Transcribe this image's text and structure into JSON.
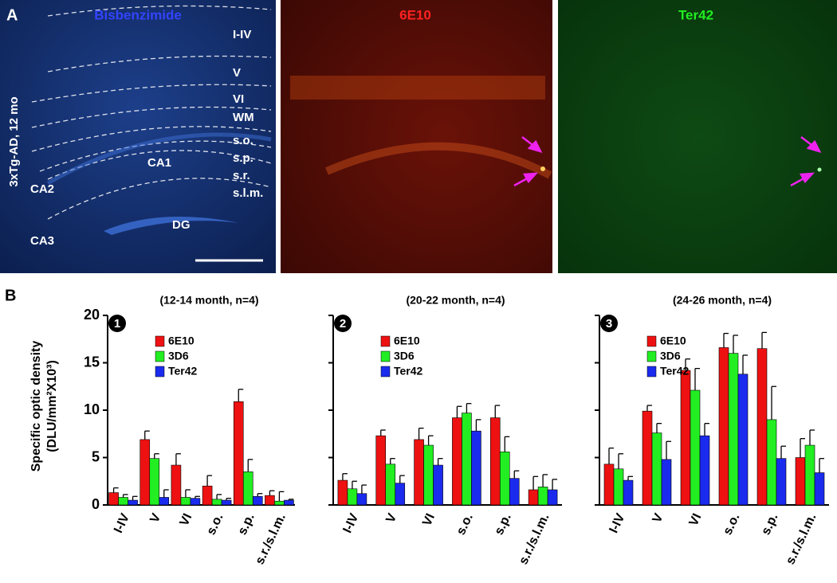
{
  "panel_a": {
    "label": "A",
    "images": [
      {
        "title": "Bisbenzimide"
      },
      {
        "title": "6E10"
      },
      {
        "title": "Ter42"
      }
    ],
    "layers": [
      "I-IV",
      "V",
      "VI",
      "WM",
      "s.o.",
      "s.p.",
      "s.r.",
      "s.l.m."
    ],
    "regions": [
      "CA1",
      "CA2",
      "CA3",
      "DG"
    ],
    "side_label": "3xTg-AD, 12 mo"
  },
  "panel_b": {
    "label": "B",
    "ylabel": [
      "Specific optic density",
      "(DLU/mm²X10³)"
    ]
  },
  "chart_data": [
    {
      "type": "bar",
      "number": "1",
      "title": "(12-14 month, n=4)",
      "categories": [
        "I-IV",
        "V",
        "VI",
        "s.o.",
        "s.p.",
        "s.r./s.l.m."
      ],
      "ylim": [
        0,
        20
      ],
      "yticks": [
        0,
        5,
        10,
        15,
        20
      ],
      "series": [
        {
          "name": "6E10",
          "color": "#ee1111",
          "values": [
            1.3,
            6.9,
            4.2,
            2.0,
            10.9,
            1.0
          ],
          "errors": [
            0.5,
            0.9,
            1.2,
            1.1,
            1.3,
            0.5
          ]
        },
        {
          "name": "3D6",
          "color": "#22ee22",
          "values": [
            0.8,
            4.9,
            0.8,
            0.6,
            3.5,
            0.4
          ],
          "errors": [
            0.3,
            0.5,
            0.8,
            0.5,
            1.3,
            1.0
          ]
        },
        {
          "name": "Ter42",
          "color": "#1a2bee",
          "values": [
            0.5,
            0.8,
            0.7,
            0.5,
            0.9,
            0.5
          ],
          "errors": [
            0.4,
            0.8,
            0.2,
            0.2,
            0.3,
            0.1
          ]
        }
      ]
    },
    {
      "type": "bar",
      "number": "2",
      "title": "(20-22 month, n=4)",
      "categories": [
        "I-IV",
        "V",
        "VI",
        "s.o.",
        "s.p.",
        "s.r./s.l.m."
      ],
      "ylim": [
        0,
        20
      ],
      "series": [
        {
          "name": "6E10",
          "color": "#ee1111",
          "values": [
            2.6,
            7.3,
            6.9,
            9.2,
            9.2,
            1.6
          ],
          "errors": [
            0.7,
            0.6,
            1.2,
            1.2,
            1.3,
            1.4
          ]
        },
        {
          "name": "3D6",
          "color": "#22ee22",
          "values": [
            1.7,
            4.3,
            6.3,
            9.7,
            5.6,
            1.9
          ],
          "errors": [
            0.8,
            0.6,
            1.0,
            1.0,
            1.6,
            1.3
          ]
        },
        {
          "name": "Ter42",
          "color": "#1a2bee",
          "values": [
            1.2,
            2.3,
            4.2,
            7.8,
            2.8,
            1.6
          ],
          "errors": [
            0.9,
            0.8,
            0.7,
            1.2,
            0.8,
            1.1
          ]
        }
      ]
    },
    {
      "type": "bar",
      "number": "3",
      "title": "(24-26 month, n=4)",
      "categories": [
        "I-IV",
        "V",
        "VI",
        "s.o.",
        "s.p.",
        "s.r./s.l.m."
      ],
      "ylim": [
        0,
        20
      ],
      "series": [
        {
          "name": "6E10",
          "color": "#ee1111",
          "values": [
            4.3,
            9.9,
            14.2,
            16.6,
            16.5,
            5.0
          ],
          "errors": [
            1.7,
            0.6,
            1.2,
            1.5,
            1.7,
            2.0
          ]
        },
        {
          "name": "3D6",
          "color": "#22ee22",
          "values": [
            3.8,
            7.6,
            12.1,
            16.0,
            9.0,
            6.3
          ],
          "errors": [
            1.6,
            1.0,
            2.3,
            1.9,
            3.5,
            1.6
          ]
        },
        {
          "name": "Ter42",
          "color": "#1a2bee",
          "values": [
            2.6,
            4.8,
            7.3,
            13.8,
            4.9,
            3.4
          ],
          "errors": [
            0.4,
            1.9,
            1.3,
            2.0,
            1.3,
            1.5
          ]
        }
      ]
    }
  ]
}
